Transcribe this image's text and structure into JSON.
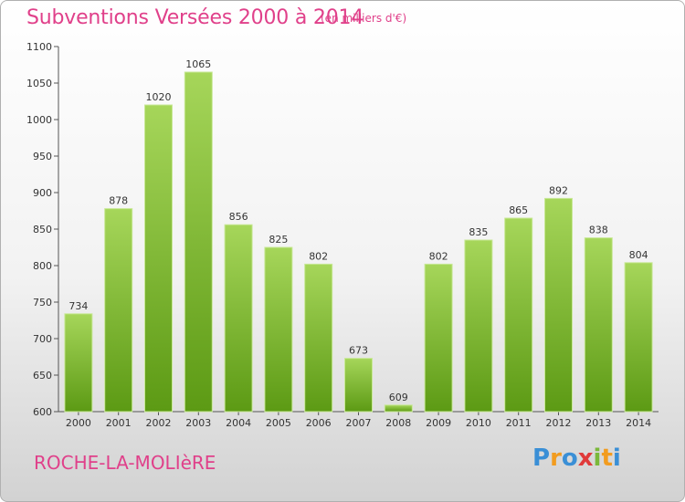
{
  "title": "Subventions Versées 2000 à 2014",
  "subtitle": "(en milliers d'€)",
  "place": "ROCHE-LA-MOLIèRE",
  "logo": {
    "letters": [
      "P",
      "r",
      "o",
      "x",
      "i",
      "t",
      "i"
    ],
    "colors": [
      "#3a8fd6",
      "#f29c1f",
      "#3a8fd6",
      "#e03a3a",
      "#7ab83a",
      "#f29c1f",
      "#3a8fd6"
    ]
  },
  "colors": {
    "bar_top": "#a6d65a",
    "bar_bottom": "#5c9a14",
    "title": "#e0408a"
  },
  "chart_data": {
    "type": "bar",
    "categories": [
      "2000",
      "2001",
      "2002",
      "2003",
      "2004",
      "2005",
      "2006",
      "2007",
      "2008",
      "2009",
      "2010",
      "2011",
      "2012",
      "2013",
      "2014"
    ],
    "values": [
      734,
      878,
      1020,
      1065,
      856,
      825,
      802,
      673,
      609,
      802,
      835,
      865,
      892,
      838,
      804
    ],
    "title": "Subventions Versées 2000 à 2014",
    "ylim": [
      600,
      1100
    ],
    "yticks": [
      600,
      650,
      700,
      750,
      800,
      850,
      900,
      950,
      1000,
      1050,
      1100
    ],
    "grid": false
  }
}
